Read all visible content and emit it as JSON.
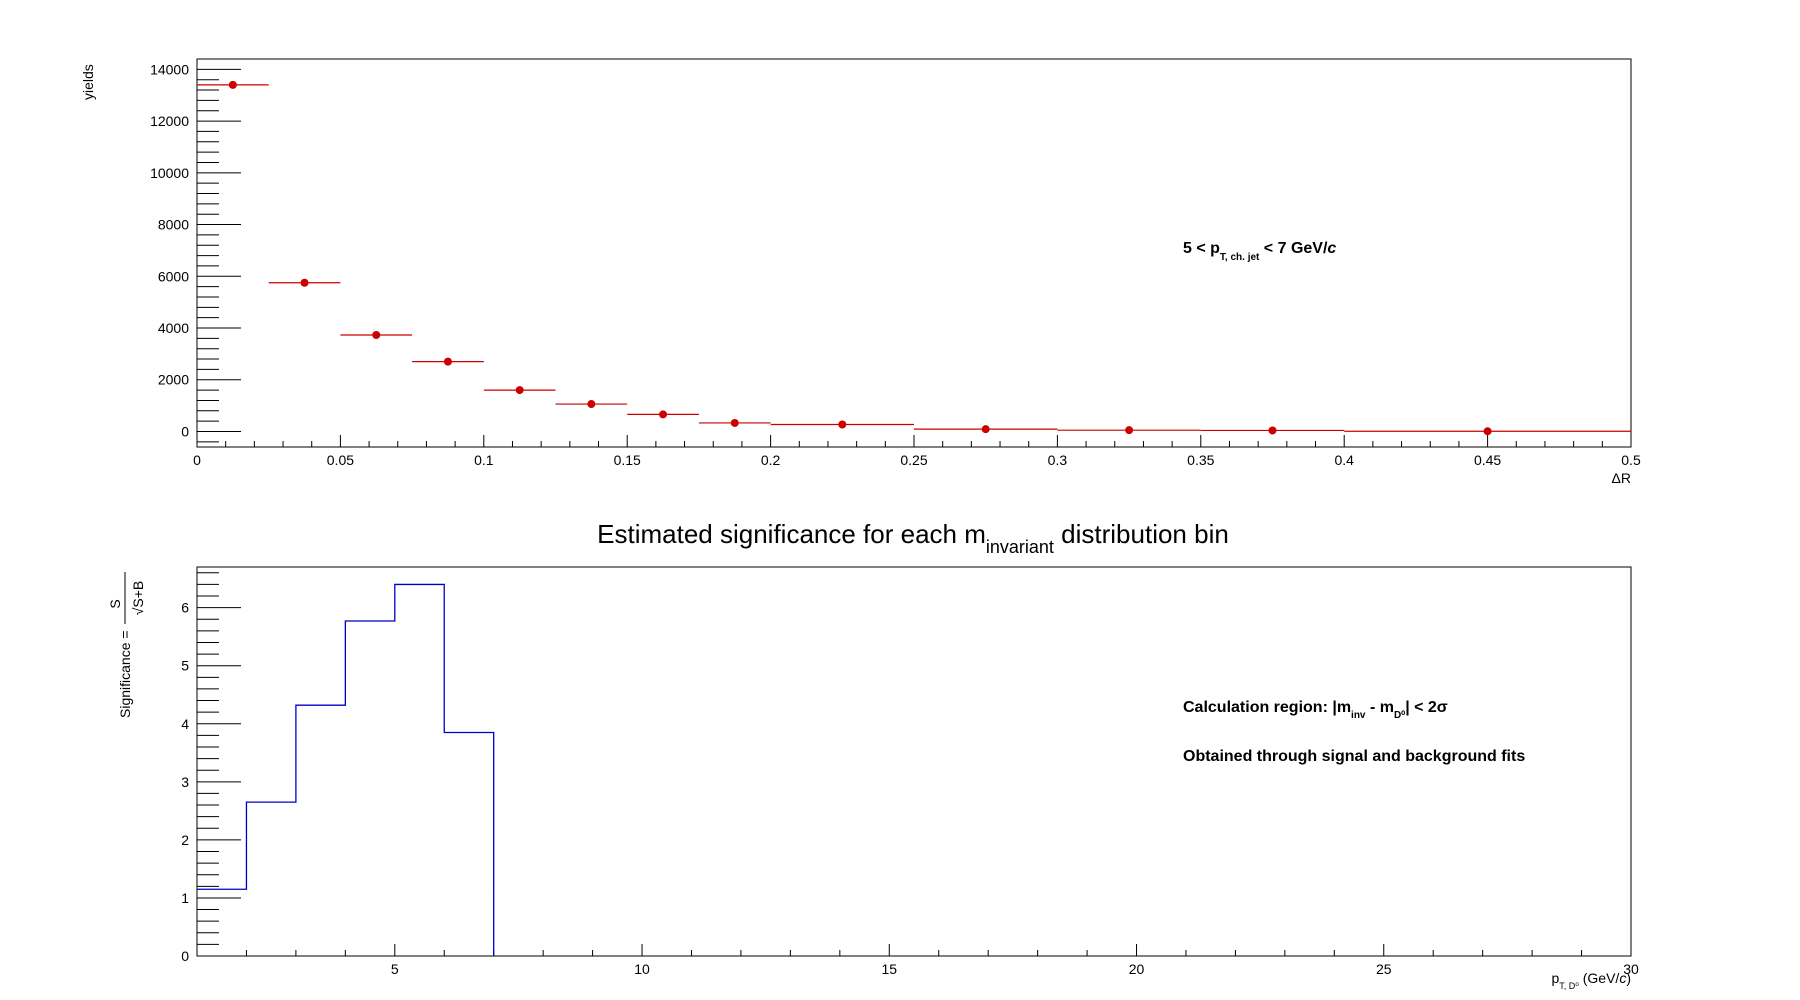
{
  "chart_data": [
    {
      "type": "scatter",
      "title": "",
      "xlabel": "ΔR",
      "ylabel": "yields",
      "xlim": [
        0,
        0.5
      ],
      "ylim": [
        -600,
        14400
      ],
      "x_ticks": [
        "0",
        "0.05",
        "0.1",
        "0.15",
        "0.2",
        "0.25",
        "0.3",
        "0.35",
        "0.4",
        "0.45",
        "0.5"
      ],
      "y_ticks": [
        "0",
        "2000",
        "4000",
        "6000",
        "8000",
        "10000",
        "12000",
        "14000"
      ],
      "annotation": {
        "pre": "5 < p",
        "sub": "T, ch. jet",
        "post": " < 7 GeV/",
        "italic": "c"
      },
      "color": "#cc0000",
      "series": [
        {
          "points": [
            {
              "x": 0.0125,
              "y": 13400,
              "xerr": 0.0125
            },
            {
              "x": 0.0375,
              "y": 5750,
              "xerr": 0.0125
            },
            {
              "x": 0.0625,
              "y": 3730,
              "xerr": 0.0125
            },
            {
              "x": 0.0875,
              "y": 2700,
              "xerr": 0.0125
            },
            {
              "x": 0.1125,
              "y": 1600,
              "xerr": 0.0125
            },
            {
              "x": 0.1375,
              "y": 1060,
              "xerr": 0.0125
            },
            {
              "x": 0.1625,
              "y": 660,
              "xerr": 0.0125
            },
            {
              "x": 0.1875,
              "y": 330,
              "xerr": 0.0125
            },
            {
              "x": 0.225,
              "y": 270,
              "xerr": 0.025
            },
            {
              "x": 0.275,
              "y": 90,
              "xerr": 0.025
            },
            {
              "x": 0.325,
              "y": 50,
              "xerr": 0.025
            },
            {
              "x": 0.375,
              "y": 40,
              "xerr": 0.025
            },
            {
              "x": 0.45,
              "y": 10,
              "xerr": 0.05
            }
          ]
        }
      ]
    },
    {
      "type": "histogram",
      "title": {
        "pre": "Estimated significance for each m",
        "sub": "invariant",
        "post": " distribution bin"
      },
      "xlabel": {
        "pre": "p",
        "sub": "T, D⁰",
        "post": " (GeV/",
        "italic": "c",
        "end": ")"
      },
      "ylabel": {
        "pre": "Significance = ",
        "num": "S",
        "den": "√S+B"
      },
      "xlim": [
        1,
        30
      ],
      "ylim": [
        0,
        6.7
      ],
      "x_ticks": [
        "5",
        "10",
        "15",
        "20",
        "25",
        "30"
      ],
      "y_ticks": [
        "0",
        "1",
        "2",
        "3",
        "4",
        "5",
        "6"
      ],
      "annotations": [
        {
          "pre": "Calculation region: |m",
          "sub1": "inv",
          "mid": " - m",
          "sub2": "D⁰",
          "post": "| < 2σ"
        },
        {
          "text": "Obtained through signal and background fits"
        }
      ],
      "color": "#0000cc",
      "bin_edges": [
        1,
        2,
        3,
        4,
        5,
        6,
        7
      ],
      "values": [
        1.15,
        2.65,
        4.32,
        5.77,
        6.4,
        3.85
      ]
    }
  ]
}
